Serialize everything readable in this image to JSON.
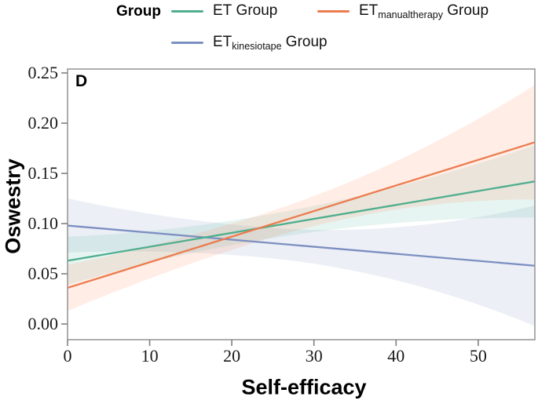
{
  "figure": {
    "panel_label": "D",
    "background": "#ffffff"
  },
  "legend": {
    "title": "Group",
    "items": [
      {
        "pre": "ET",
        "sub": "",
        "post": " Group"
      },
      {
        "pre": "ET",
        "sub": "manualtherapy",
        "post": " Group"
      },
      {
        "pre": "ET",
        "sub": "kinesiotape",
        "post": " Group"
      }
    ]
  },
  "chart_data": {
    "type": "line",
    "title": "",
    "xlabel": "Self-efficacy",
    "ylabel": "Oswestry",
    "xlim": [
      0,
      56.9
    ],
    "ylim": [
      -0.016,
      0.254
    ],
    "xticks": [
      0,
      10,
      20,
      30,
      40,
      50
    ],
    "yticks": [
      0.0,
      0.05,
      0.1,
      0.15,
      0.2,
      0.25
    ],
    "ytick_decimals": 2,
    "grid": false,
    "legend_position": "top",
    "panel_border_color": "#999999",
    "tick_color": "#808080",
    "tick_label_color": "#1a1a1a",
    "series": [
      {
        "name": "ET Group",
        "color": "#4FAE8D",
        "band_color": "#66C2A5",
        "band_opacity": 0.16,
        "x": [
          0,
          56.9
        ],
        "y": [
          0.063,
          0.142
        ],
        "ci_width": {
          "start": 0.024,
          "pinch": 0.012,
          "end": 0.036
        },
        "pinch_x": 23
      },
      {
        "name": "ET manualtherapy Group",
        "color": "#EC7C4E",
        "band_color": "#FC8D62",
        "band_opacity": 0.16,
        "x": [
          0,
          56.9
        ],
        "y": [
          0.036,
          0.181
        ],
        "ci_width": {
          "start": 0.023,
          "pinch": 0.013,
          "end": 0.057
        },
        "pinch_x": 23
      },
      {
        "name": "ET kinesiotape Group",
        "color": "#7C8FC1",
        "band_color": "#8DA0CB",
        "band_opacity": 0.17,
        "x": [
          0,
          56.9
        ],
        "y": [
          0.098,
          0.058
        ],
        "ci_width": {
          "start": 0.027,
          "pinch": 0.015,
          "end": 0.06
        },
        "pinch_x": 23
      }
    ]
  }
}
